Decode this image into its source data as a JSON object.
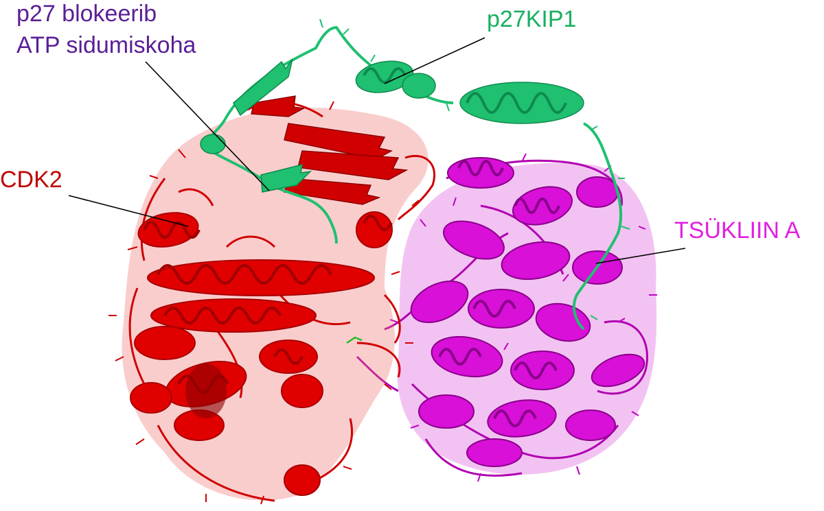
{
  "labels": {
    "atp_line1": "p27 blokeerib",
    "atp_line2": "ATP sidumiskoha",
    "p27": "p27KIP1",
    "cdk2": "CDK2",
    "cyclin": "TSÜKLIIN A"
  },
  "colors": {
    "cdk2": "#e00000",
    "cdk2_dark": "#a80000",
    "cyclin": "#d810d8",
    "cyclin_dark": "#8a008a",
    "p27": "#1fc070",
    "p27_dark": "#0e8a4e",
    "atp_label": "#5a1e96",
    "p27_label": "#18b060",
    "cdk2_label": "#c00000",
    "cyclin_label": "#e020e0",
    "leader": "#000000"
  }
}
